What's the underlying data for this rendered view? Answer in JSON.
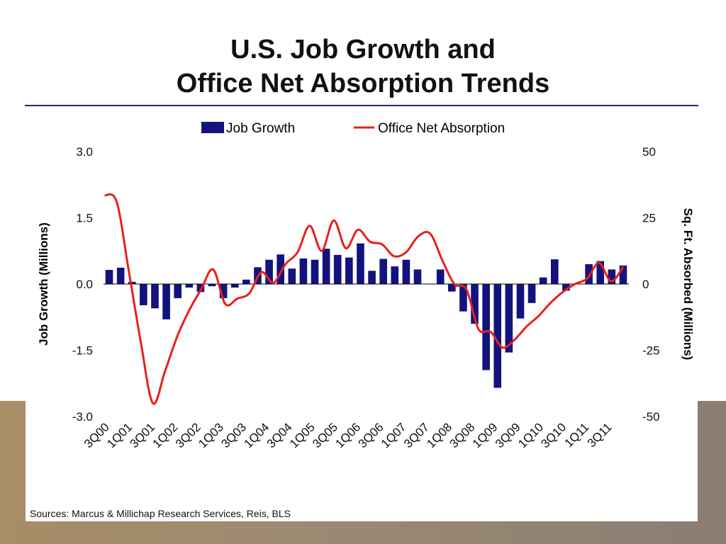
{
  "slide": {
    "title_line1": "U.S. Job Growth and",
    "title_line2": "Office Net Absorption Trends",
    "source": "Sources: Marcus & Millichap Research Services, Reis, BLS"
  },
  "colors": {
    "bar": "#13137e",
    "line": "#e8201c",
    "axis_text": "#111111",
    "title_rule": "#1f2a6e"
  },
  "chart_data": {
    "type": "bar",
    "legend_placement": "top",
    "grid": false,
    "series": [
      {
        "name": "Job Growth",
        "kind": "bar",
        "axis": "left",
        "values": [
          0.32,
          0.37,
          0.05,
          -0.48,
          -0.55,
          -0.8,
          -0.32,
          -0.08,
          -0.18,
          -0.05,
          -0.32,
          -0.08,
          0.1,
          0.38,
          0.55,
          0.67,
          0.35,
          0.58,
          0.55,
          0.8,
          0.66,
          0.6,
          0.92,
          0.3,
          0.57,
          0.4,
          0.55,
          0.33,
          0.0,
          0.33,
          -0.17,
          -0.62,
          -0.9,
          -1.95,
          -2.35,
          -1.55,
          -0.78,
          -0.43,
          0.15,
          0.56,
          -0.15,
          0.0,
          0.45,
          0.52,
          0.33,
          0.42
        ]
      },
      {
        "name": "Office Net Absorption",
        "kind": "line",
        "axis": "right",
        "values": [
          33.5,
          31.0,
          5.0,
          -22.0,
          -45.0,
          -33.0,
          -20.0,
          -10.0,
          -2.0,
          5.5,
          -7.5,
          -5.5,
          -3.5,
          4.5,
          0.5,
          7.5,
          12.0,
          22.0,
          12.5,
          24.0,
          13.5,
          20.5,
          16.0,
          15.0,
          10.5,
          12.0,
          18.0,
          19.0,
          9.0,
          0.0,
          -2.0,
          -17.0,
          -18.0,
          -24.0,
          -21.0,
          -16.0,
          -12.0,
          -7.0,
          -3.0,
          0.0,
          2.0,
          8.0,
          1.0,
          6.5
        ]
      }
    ],
    "x_tick_labels": [
      "3Q00",
      "1Q01",
      "3Q01",
      "1Q02",
      "3Q02",
      "1Q03",
      "3Q03",
      "1Q04",
      "3Q04",
      "1Q05",
      "3Q05",
      "1Q06",
      "3Q06",
      "1Q07",
      "3Q07",
      "1Q08",
      "3Q08",
      "1Q09",
      "3Q09",
      "1Q10",
      "3Q10",
      "1Q11",
      "3Q11"
    ],
    "y_left": {
      "label": "Job Growth (Millions)",
      "range": [
        -3.0,
        3.0
      ],
      "ticks": [
        "3.0",
        "1.5",
        "0.0",
        "-1.5",
        "-3.0"
      ]
    },
    "y_right": {
      "label": "Sq. Ft. Absorbed (Millions)",
      "range": [
        -50,
        50
      ],
      "ticks": [
        "50",
        "25",
        "0",
        "-25",
        "-50"
      ]
    }
  }
}
